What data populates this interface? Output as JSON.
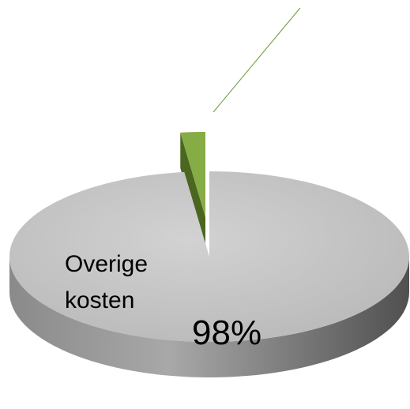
{
  "chart_data": {
    "type": "pie",
    "categories": [
      "Overige kosten",
      null
    ],
    "values": [
      98,
      2
    ],
    "value_labels": [
      "98%",
      null
    ],
    "colors": [
      "#c4c4c4",
      "#86ad45"
    ],
    "three_d": true
  }
}
